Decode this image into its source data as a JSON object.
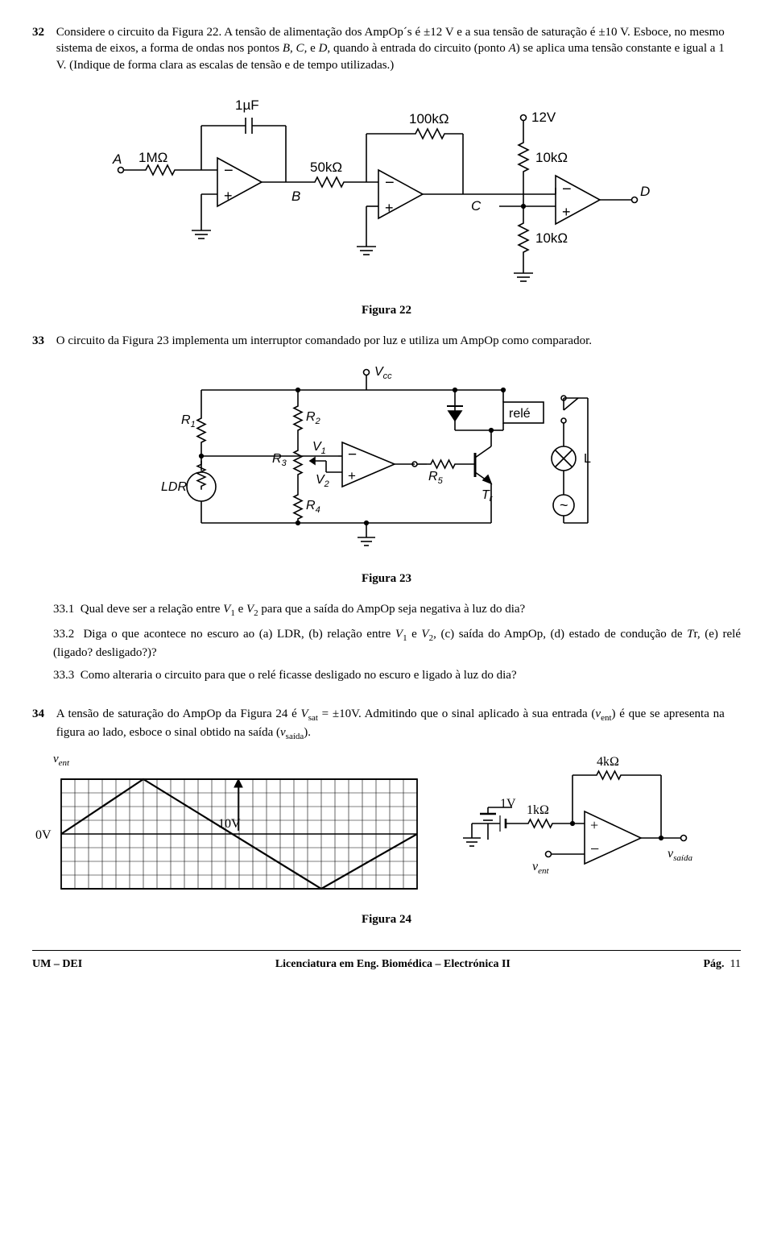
{
  "q32": {
    "num": "32",
    "text1": "Considere o circuito da Figura 22. A tensão de alimentação dos AmpOp´s é ±12 V e a sua tensão de saturação é ±10 V. Esboce, no mesmo sistema de eixos, a forma de ondas nos pontos ",
    "bcd": "B, C,",
    "text2": " e ",
    "d": "D",
    "text3": ", quando à entrada do circuito (ponto ",
    "a": "A",
    "text4": ") se aplica uma tensão constante e igual a 1 V. (Indique de forma clara as escalas de tensão e de tempo utilizadas.)"
  },
  "fig22": {
    "cap": "Figura 22",
    "labels": {
      "A": "A",
      "B": "B",
      "C": "C",
      "D": "D",
      "cap": "1µF",
      "r1": "1MΩ",
      "r50": "50kΩ",
      "r100": "100kΩ",
      "r10a": "10kΩ",
      "r10b": "10kΩ",
      "v12": "12V"
    }
  },
  "q33": {
    "num": "33",
    "text": "O circuito da Figura 23 implementa um interruptor comandado por luz e utiliza um AmpOp como comparador."
  },
  "fig23": {
    "cap": "Figura 23",
    "labels": {
      "Vcc": "V",
      "Vccsub": "cc",
      "R1": "R",
      "R2": "R",
      "R3": "R",
      "R4": "R",
      "R5": "R",
      "s1": "1",
      "s2": "2",
      "s3": "3",
      "s4": "4",
      "s5": "5",
      "V1": "V",
      "V2": "V",
      "sv1": "1",
      "sv2": "2",
      "LDR": "LDR",
      "Tr": "T",
      "Trsub": "r",
      "rele": "relé",
      "L": "L",
      "tilde": "~"
    }
  },
  "q33_1": {
    "num": "33.1",
    "textA": "Qual deve ser a relação entre ",
    "V1": "V",
    "s1": "1",
    "textB": " e ",
    "V2": "V",
    "s2": "2",
    "textC": " para que a saída do AmpOp seja negativa à luz do dia?"
  },
  "q33_2": {
    "num": "33.2",
    "textA": "Diga o que acontece no escuro ao (a) LDR, (b) relação entre ",
    "V1": "V",
    "s1": "1",
    "textB": " e ",
    "V2": "V",
    "s2": "2",
    "textC": ", (c) saída do AmpOp, (d) estado de condução de ",
    "Tr": "T",
    "Trsub": "r",
    "textD": ", (e) relé (ligado? desligado?)?"
  },
  "q33_3": {
    "num": "33.3",
    "text": "Como alteraria o circuito para que o relé ficasse desligado no escuro e ligado à luz do dia?"
  },
  "q34": {
    "num": "34",
    "textA": "A tensão de saturação do AmpOp da Figura 24 é ",
    "Vsat": "V",
    "Vsatsub": "sat",
    "textB": " = ±10V. Admitindo que o sinal aplicado à sua entrada (",
    "vent": "v",
    "ventsub": "ent",
    "textC": ") é que se apresenta na figura ao lado, esboce o sinal obtido na saída (",
    "vsaida": "v",
    "vsaidasub": "saída",
    "textD": ")."
  },
  "fig24": {
    "cap": "Figura 24",
    "labels": {
      "vent": "v",
      "ventsub": "ent",
      "zeroV": "0V",
      "tenV": "10V",
      "oneV": "1V",
      "r1k": "1kΩ",
      "r4k": "4kΩ",
      "vsaida": "v",
      "vsaidasub": "saída"
    },
    "grid": {
      "cols": 26,
      "rows": 8,
      "cell": 17
    }
  },
  "footer": {
    "left": "UM – DEI",
    "mid": "Licenciatura em Eng. Biomédica – Electrónica II",
    "rightA": "Pág.",
    "rightB": "11"
  }
}
